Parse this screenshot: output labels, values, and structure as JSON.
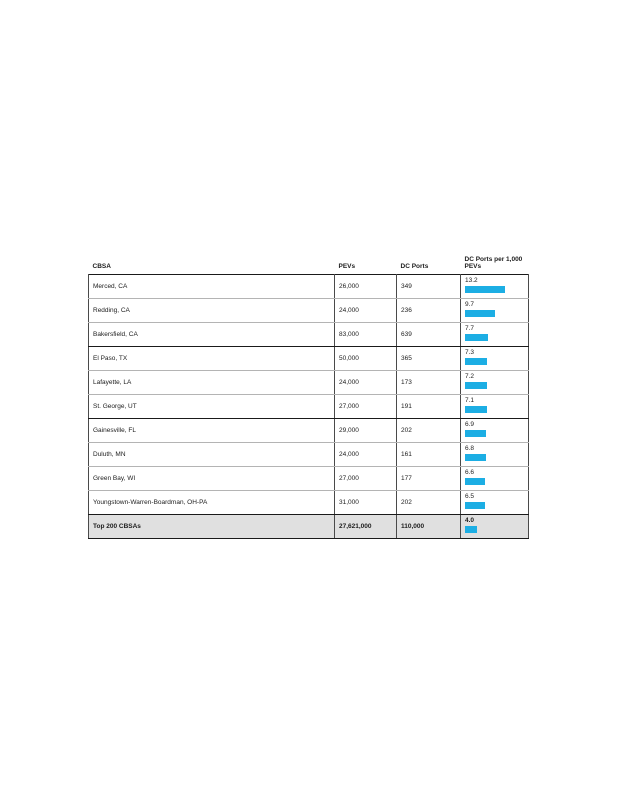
{
  "page": {
    "background": "#ffffff"
  },
  "chart_data": {
    "type": "table",
    "title": "",
    "columns": [
      "CBSA",
      "PEVs",
      "DC Ports",
      "DC Ports per 1,000 PEVs"
    ],
    "rows": [
      {
        "cbsa": "Merced, CA",
        "pevs": "26,000",
        "dc_ports": "349",
        "ratio": "13.2"
      },
      {
        "cbsa": "Redding, CA",
        "pevs": "24,000",
        "dc_ports": "236",
        "ratio": "9.7"
      },
      {
        "cbsa": "Bakersfield, CA",
        "pevs": "83,000",
        "dc_ports": "639",
        "ratio": "7.7"
      },
      {
        "cbsa": "El Paso, TX",
        "pevs": "50,000",
        "dc_ports": "365",
        "ratio": "7.3"
      },
      {
        "cbsa": "Lafayette, LA",
        "pevs": "24,000",
        "dc_ports": "173",
        "ratio": "7.2"
      },
      {
        "cbsa": "St. George, UT",
        "pevs": "27,000",
        "dc_ports": "191",
        "ratio": "7.1"
      },
      {
        "cbsa": "Gainesville, FL",
        "pevs": "29,000",
        "dc_ports": "202",
        "ratio": "6.9"
      },
      {
        "cbsa": "Duluth, MN",
        "pevs": "24,000",
        "dc_ports": "161",
        "ratio": "6.8"
      },
      {
        "cbsa": "Green Bay, WI",
        "pevs": "27,000",
        "dc_ports": "177",
        "ratio": "6.6"
      },
      {
        "cbsa": "Youngstown-Warren-Boardman, OH-PA",
        "pevs": "31,000",
        "dc_ports": "202",
        "ratio": "6.5"
      }
    ],
    "total": {
      "cbsa": "Top 200 CBSAs",
      "pevs": "27,621,000",
      "dc_ports": "110,000",
      "ratio": "4.0"
    },
    "bar": {
      "color": "#1CAEE4",
      "scale_max": 20
    }
  }
}
